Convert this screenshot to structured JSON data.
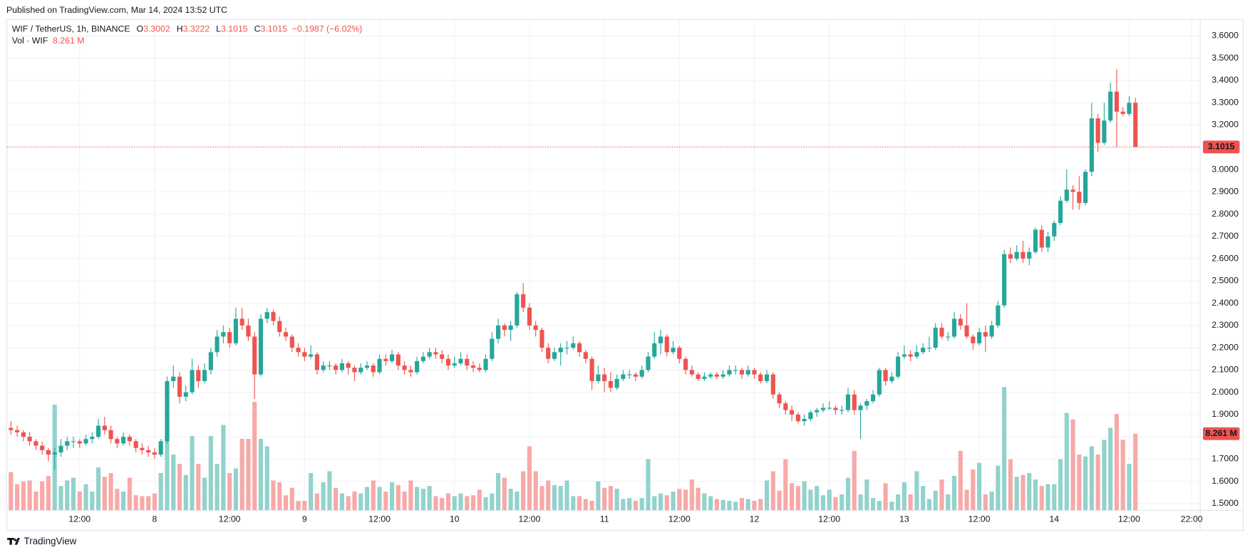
{
  "chart_data": {
    "type": "candlestick",
    "published": "Published on TradingView.com, Mar 14, 2024 13:52 UTC",
    "legend": {
      "symbol": "WIF / TetherUS, 1h, BINANCE",
      "fields": [
        "O",
        "H",
        "L",
        "C"
      ],
      "change": "−0.1987 (−6.02%)",
      "volume_name": "Vol · WIF"
    },
    "volume_value_label": "8.261 M",
    "brand": "TradingView",
    "up_color": "#26a69a",
    "down_color": "#ef5350",
    "volume_up_color": "#92d2cc",
    "volume_down_color": "#f7a9a7",
    "grid": true,
    "xlim": [
      -0.6,
      190.3
    ],
    "xticks": [
      {
        "value": 11,
        "label": "12:00"
      },
      {
        "value": 23,
        "label": "8"
      },
      {
        "value": 35,
        "label": "12:00"
      },
      {
        "value": 47,
        "label": "9"
      },
      {
        "value": 59,
        "label": "12:00"
      },
      {
        "value": 71,
        "label": "10"
      },
      {
        "value": 83,
        "label": "12:00"
      },
      {
        "value": 95,
        "label": "11"
      },
      {
        "value": 107,
        "label": "12:00"
      },
      {
        "value": 119,
        "label": "12"
      },
      {
        "value": 131,
        "label": "12:00"
      },
      {
        "value": 143,
        "label": "13"
      },
      {
        "value": 155,
        "label": "12:00"
      },
      {
        "value": 167,
        "label": "14"
      },
      {
        "value": 179,
        "label": "12:00"
      },
      {
        "value": 189,
        "label": "22:00"
      }
    ],
    "ylim": [
      1.471,
      3.672
    ],
    "yticks": [
      {
        "value": 1.5,
        "label": "1.5000"
      },
      {
        "value": 1.6,
        "label": "1.6000"
      },
      {
        "value": 1.7,
        "label": "1.7000"
      },
      {
        "value": 1.8,
        "label": "1.8000"
      },
      {
        "value": 1.9,
        "label": "1.9000"
      },
      {
        "value": 2.0,
        "label": "2.0000"
      },
      {
        "value": 2.1,
        "label": "2.1000"
      },
      {
        "value": 2.2,
        "label": "2.2000"
      },
      {
        "value": 2.3,
        "label": "2.3000"
      },
      {
        "value": 2.4,
        "label": "2.4000"
      },
      {
        "value": 2.5,
        "label": "2.5000"
      },
      {
        "value": 2.6,
        "label": "2.6000"
      },
      {
        "value": 2.7,
        "label": "2.7000"
      },
      {
        "value": 2.8,
        "label": "2.8000"
      },
      {
        "value": 2.9,
        "label": "2.9000"
      },
      {
        "value": 3.0,
        "label": "3.0000"
      },
      {
        "value": 3.1,
        "label": "3.1000"
      },
      {
        "value": 3.2,
        "label": "3.2000"
      },
      {
        "value": 3.3,
        "label": "3.3000"
      },
      {
        "value": 3.4,
        "label": "3.4000"
      },
      {
        "value": 3.5,
        "label": "3.5000"
      },
      {
        "value": 3.6,
        "label": "3.6000"
      }
    ],
    "volume_lim": [
      0,
      53
    ],
    "ohlc": [
      [
        1.84,
        1.87,
        1.81,
        1.83
      ],
      [
        1.83,
        1.85,
        1.8,
        1.82
      ],
      [
        1.82,
        1.83,
        1.78,
        1.8
      ],
      [
        1.8,
        1.82,
        1.76,
        1.78
      ],
      [
        1.78,
        1.79,
        1.74,
        1.76
      ],
      [
        1.76,
        1.78,
        1.72,
        1.74
      ],
      [
        1.74,
        1.75,
        1.69,
        1.72
      ],
      [
        1.72,
        1.75,
        1.65,
        1.73
      ],
      [
        1.73,
        1.79,
        1.71,
        1.76
      ],
      [
        1.76,
        1.8,
        1.74,
        1.78
      ],
      [
        1.78,
        1.8,
        1.75,
        1.78
      ],
      [
        1.78,
        1.79,
        1.75,
        1.77
      ],
      [
        1.77,
        1.81,
        1.76,
        1.79
      ],
      [
        1.79,
        1.82,
        1.77,
        1.8
      ],
      [
        1.8,
        1.88,
        1.79,
        1.85
      ],
      [
        1.85,
        1.89,
        1.81,
        1.83
      ],
      [
        1.83,
        1.85,
        1.77,
        1.79
      ],
      [
        1.79,
        1.8,
        1.75,
        1.77
      ],
      [
        1.77,
        1.82,
        1.76,
        1.8
      ],
      [
        1.8,
        1.81,
        1.76,
        1.78
      ],
      [
        1.78,
        1.79,
        1.73,
        1.75
      ],
      [
        1.75,
        1.77,
        1.72,
        1.74
      ],
      [
        1.74,
        1.76,
        1.71,
        1.73
      ],
      [
        1.73,
        1.75,
        1.7,
        1.72
      ],
      [
        1.72,
        1.79,
        1.71,
        1.78
      ],
      [
        1.78,
        2.07,
        1.77,
        2.05
      ],
      [
        2.05,
        2.12,
        2.02,
        2.07
      ],
      [
        2.07,
        2.09,
        1.95,
        1.98
      ],
      [
        1.98,
        2.03,
        1.96,
        2.0
      ],
      [
        2.0,
        2.15,
        1.99,
        2.1
      ],
      [
        2.1,
        2.12,
        2.02,
        2.05
      ],
      [
        2.05,
        2.13,
        2.04,
        2.1
      ],
      [
        2.1,
        2.2,
        2.08,
        2.18
      ],
      [
        2.18,
        2.28,
        2.16,
        2.25
      ],
      [
        2.25,
        2.3,
        2.22,
        2.27
      ],
      [
        2.27,
        2.29,
        2.2,
        2.22
      ],
      [
        2.22,
        2.38,
        2.21,
        2.33
      ],
      [
        2.33,
        2.38,
        2.28,
        2.3
      ],
      [
        2.3,
        2.33,
        2.23,
        2.25
      ],
      [
        2.25,
        2.27,
        1.97,
        2.08
      ],
      [
        2.08,
        2.35,
        2.07,
        2.33
      ],
      [
        2.33,
        2.38,
        2.31,
        2.36
      ],
      [
        2.36,
        2.37,
        2.3,
        2.32
      ],
      [
        2.32,
        2.34,
        2.25,
        2.27
      ],
      [
        2.27,
        2.29,
        2.23,
        2.25
      ],
      [
        2.25,
        2.26,
        2.18,
        2.2
      ],
      [
        2.2,
        2.22,
        2.16,
        2.18
      ],
      [
        2.18,
        2.2,
        2.14,
        2.16
      ],
      [
        2.16,
        2.21,
        2.15,
        2.17
      ],
      [
        2.17,
        2.18,
        2.08,
        2.1
      ],
      [
        2.1,
        2.14,
        2.09,
        2.12
      ],
      [
        2.12,
        2.14,
        2.1,
        2.12
      ],
      [
        2.12,
        2.13,
        2.08,
        2.1
      ],
      [
        2.1,
        2.15,
        2.09,
        2.13
      ],
      [
        2.13,
        2.14,
        2.08,
        2.11
      ],
      [
        2.11,
        2.12,
        2.05,
        2.09
      ],
      [
        2.09,
        2.13,
        2.08,
        2.11
      ],
      [
        2.11,
        2.14,
        2.1,
        2.12
      ],
      [
        2.12,
        2.13,
        2.07,
        2.09
      ],
      [
        2.09,
        2.17,
        2.08,
        2.15
      ],
      [
        2.15,
        2.17,
        2.12,
        2.14
      ],
      [
        2.14,
        2.19,
        2.13,
        2.17
      ],
      [
        2.17,
        2.18,
        2.1,
        2.12
      ],
      [
        2.12,
        2.14,
        2.08,
        2.1
      ],
      [
        2.1,
        2.12,
        2.07,
        2.09
      ],
      [
        2.09,
        2.16,
        2.08,
        2.14
      ],
      [
        2.14,
        2.18,
        2.13,
        2.16
      ],
      [
        2.16,
        2.2,
        2.15,
        2.18
      ],
      [
        2.18,
        2.2,
        2.15,
        2.17
      ],
      [
        2.17,
        2.19,
        2.13,
        2.15
      ],
      [
        2.15,
        2.17,
        2.1,
        2.12
      ],
      [
        2.12,
        2.16,
        2.11,
        2.13
      ],
      [
        2.13,
        2.18,
        2.12,
        2.15
      ],
      [
        2.15,
        2.17,
        2.1,
        2.12
      ],
      [
        2.12,
        2.14,
        2.09,
        2.11
      ],
      [
        2.11,
        2.13,
        2.09,
        2.1
      ],
      [
        2.1,
        2.17,
        2.09,
        2.15
      ],
      [
        2.15,
        2.27,
        2.14,
        2.24
      ],
      [
        2.24,
        2.33,
        2.22,
        2.3
      ],
      [
        2.3,
        2.31,
        2.25,
        2.28
      ],
      [
        2.28,
        2.32,
        2.23,
        2.3
      ],
      [
        2.3,
        2.45,
        2.29,
        2.44
      ],
      [
        2.44,
        2.49,
        2.36,
        2.38
      ],
      [
        2.38,
        2.4,
        2.28,
        2.3
      ],
      [
        2.3,
        2.32,
        2.25,
        2.28
      ],
      [
        2.28,
        2.29,
        2.18,
        2.2
      ],
      [
        2.2,
        2.22,
        2.13,
        2.15
      ],
      [
        2.15,
        2.2,
        2.14,
        2.18
      ],
      [
        2.18,
        2.22,
        2.12,
        2.2
      ],
      [
        2.2,
        2.23,
        2.17,
        2.2
      ],
      [
        2.2,
        2.25,
        2.19,
        2.22
      ],
      [
        2.22,
        2.23,
        2.16,
        2.18
      ],
      [
        2.18,
        2.19,
        2.13,
        2.15
      ],
      [
        2.15,
        2.16,
        2.01,
        2.05
      ],
      [
        2.05,
        2.12,
        2.04,
        2.08
      ],
      [
        2.08,
        2.11,
        2.0,
        2.05
      ],
      [
        2.05,
        2.09,
        2.0,
        2.02
      ],
      [
        2.02,
        2.08,
        2.01,
        2.06
      ],
      [
        2.06,
        2.1,
        2.05,
        2.08
      ],
      [
        2.08,
        2.1,
        2.06,
        2.08
      ],
      [
        2.08,
        2.09,
        2.05,
        2.07
      ],
      [
        2.07,
        2.12,
        2.06,
        2.1
      ],
      [
        2.1,
        2.18,
        2.09,
        2.16
      ],
      [
        2.16,
        2.27,
        2.15,
        2.22
      ],
      [
        2.22,
        2.28,
        2.17,
        2.25
      ],
      [
        2.25,
        2.26,
        2.16,
        2.18
      ],
      [
        2.18,
        2.23,
        2.17,
        2.2
      ],
      [
        2.2,
        2.21,
        2.13,
        2.15
      ],
      [
        2.15,
        2.16,
        2.08,
        2.1
      ],
      [
        2.1,
        2.12,
        2.07,
        2.08
      ],
      [
        2.08,
        2.09,
        2.05,
        2.06
      ],
      [
        2.06,
        2.09,
        2.05,
        2.07
      ],
      [
        2.07,
        2.09,
        2.06,
        2.08
      ],
      [
        2.08,
        2.09,
        2.06,
        2.07
      ],
      [
        2.07,
        2.1,
        2.06,
        2.08
      ],
      [
        2.08,
        2.12,
        2.07,
        2.1
      ],
      [
        2.1,
        2.12,
        2.08,
        2.1
      ],
      [
        2.1,
        2.11,
        2.06,
        2.08
      ],
      [
        2.08,
        2.12,
        2.07,
        2.1
      ],
      [
        2.1,
        2.11,
        2.06,
        2.08
      ],
      [
        2.08,
        2.09,
        2.04,
        2.05
      ],
      [
        2.05,
        2.1,
        2.04,
        2.08
      ],
      [
        2.08,
        2.09,
        1.97,
        1.99
      ],
      [
        1.99,
        2.0,
        1.93,
        1.95
      ],
      [
        1.95,
        1.96,
        1.9,
        1.92
      ],
      [
        1.92,
        1.94,
        1.87,
        1.9
      ],
      [
        1.9,
        1.91,
        1.86,
        1.87
      ],
      [
        1.87,
        1.9,
        1.85,
        1.88
      ],
      [
        1.88,
        1.92,
        1.87,
        1.91
      ],
      [
        1.91,
        1.93,
        1.89,
        1.92
      ],
      [
        1.92,
        1.95,
        1.91,
        1.93
      ],
      [
        1.93,
        1.96,
        1.92,
        1.93
      ],
      [
        1.93,
        1.94,
        1.9,
        1.92
      ],
      [
        1.92,
        1.94,
        1.9,
        1.92
      ],
      [
        1.92,
        2.02,
        1.91,
        1.99
      ],
      [
        1.99,
        2.01,
        1.9,
        1.92
      ],
      [
        1.92,
        1.95,
        1.79,
        1.94
      ],
      [
        1.94,
        1.97,
        1.92,
        1.96
      ],
      [
        1.96,
        2.01,
        1.95,
        1.99
      ],
      [
        1.99,
        2.11,
        1.98,
        2.1
      ],
      [
        2.1,
        2.11,
        2.03,
        2.05
      ],
      [
        2.05,
        2.09,
        2.04,
        2.07
      ],
      [
        2.07,
        2.18,
        2.06,
        2.16
      ],
      [
        2.16,
        2.21,
        2.15,
        2.17
      ],
      [
        2.17,
        2.19,
        2.14,
        2.16
      ],
      [
        2.16,
        2.21,
        2.15,
        2.18
      ],
      [
        2.18,
        2.22,
        2.17,
        2.2
      ],
      [
        2.2,
        2.25,
        2.18,
        2.2
      ],
      [
        2.2,
        2.31,
        2.19,
        2.29
      ],
      [
        2.29,
        2.31,
        2.24,
        2.25
      ],
      [
        2.25,
        2.27,
        2.23,
        2.25
      ],
      [
        2.25,
        2.36,
        2.24,
        2.33
      ],
      [
        2.33,
        2.35,
        2.28,
        2.3
      ],
      [
        2.3,
        2.4,
        2.24,
        2.25
      ],
      [
        2.25,
        2.26,
        2.19,
        2.22
      ],
      [
        2.22,
        2.29,
        2.21,
        2.27
      ],
      [
        2.27,
        2.3,
        2.18,
        2.25
      ],
      [
        2.25,
        2.32,
        2.24,
        2.3
      ],
      [
        2.3,
        2.41,
        2.29,
        2.39
      ],
      [
        2.39,
        2.64,
        2.38,
        2.62
      ],
      [
        2.62,
        2.65,
        2.58,
        2.6
      ],
      [
        2.6,
        2.66,
        2.59,
        2.63
      ],
      [
        2.63,
        2.68,
        2.58,
        2.6
      ],
      [
        2.6,
        2.65,
        2.57,
        2.63
      ],
      [
        2.63,
        2.74,
        2.62,
        2.73
      ],
      [
        2.73,
        2.75,
        2.63,
        2.65
      ],
      [
        2.65,
        2.72,
        2.63,
        2.7
      ],
      [
        2.7,
        2.77,
        2.68,
        2.76
      ],
      [
        2.76,
        2.88,
        2.75,
        2.86
      ],
      [
        2.86,
        3.0,
        2.85,
        2.91
      ],
      [
        2.91,
        2.93,
        2.82,
        2.9
      ],
      [
        2.9,
        2.97,
        2.82,
        2.85
      ],
      [
        2.85,
        3.0,
        2.84,
        2.99
      ],
      [
        2.99,
        3.3,
        2.97,
        3.23
      ],
      [
        3.23,
        3.25,
        3.08,
        3.12
      ],
      [
        3.12,
        3.3,
        3.11,
        3.22
      ],
      [
        3.22,
        3.39,
        3.21,
        3.35
      ],
      [
        3.35,
        3.45,
        3.1,
        3.26
      ],
      [
        3.26,
        3.28,
        3.24,
        3.25
      ],
      [
        3.25,
        3.33,
        3.24,
        3.3
      ],
      [
        3.3002,
        3.3222,
        3.1015,
        3.1015
      ]
    ],
    "volume": [
      4.1,
      2.8,
      3.1,
      3.2,
      2.0,
      3.1,
      3.7,
      11.4,
      2.6,
      3.2,
      3.5,
      2.0,
      2.8,
      2.0,
      4.6,
      3.6,
      4.0,
      2.3,
      2.0,
      3.5,
      1.6,
      1.5,
      1.5,
      1.8,
      4.0,
      8.0,
      6.0,
      5.0,
      3.8,
      8.0,
      5.0,
      3.5,
      8.0,
      5.0,
      9.2,
      4.0,
      4.5,
      7.7,
      7.7,
      11.7,
      7.7,
      6.9,
      3.2,
      3.0,
      1.6,
      2.4,
      1.0,
      1.0,
      4.0,
      1.8,
      3.0,
      4.2,
      2.4,
      1.8,
      1.5,
      2.0,
      1.8,
      2.5,
      3.2,
      2.5,
      2.0,
      3.0,
      2.7,
      2.0,
      3.2,
      2.5,
      2.3,
      2.6,
      1.5,
      1.3,
      1.8,
      1.5,
      1.8,
      1.5,
      1.6,
      2.2,
      1.4,
      1.8,
      4.0,
      3.5,
      2.3,
      2.0,
      4.2,
      6.9,
      4.2,
      2.6,
      3.2,
      2.7,
      2.6,
      3.2,
      1.5,
      1.5,
      1.2,
      1.0,
      3.1,
      2.4,
      2.6,
      2.3,
      1.2,
      1.3,
      1.0,
      1.3,
      5.5,
      1.5,
      1.8,
      1.6,
      2.0,
      2.3,
      2.2,
      3.3,
      2.4,
      1.8,
      1.5,
      1.2,
      1.1,
      1.0,
      0.9,
      1.3,
      1.2,
      1.0,
      1.2,
      3.2,
      4.2,
      2.1,
      5.5,
      2.9,
      2.6,
      3.1,
      2.2,
      2.6,
      1.6,
      2.2,
      1.4,
      1.7,
      3.5,
      6.4,
      1.7,
      3.3,
      1.3,
      1.0,
      2.9,
      0.9,
      1.7,
      3.0,
      1.7,
      4.2,
      2.6,
      1.2,
      2.1,
      3.3,
      1.7,
      3.7,
      6.4,
      2.2,
      4.4,
      5.1,
      1.7,
      2.0,
      4.8,
      13.3,
      5.5,
      3.6,
      3.8,
      4.0,
      3.3,
      2.6,
      2.8,
      2.8,
      5.5,
      10.5,
      9.8,
      6.0,
      5.8,
      6.9,
      6.0,
      7.6,
      8.9,
      10.4,
      7.6,
      5.0,
      8.261
    ]
  }
}
